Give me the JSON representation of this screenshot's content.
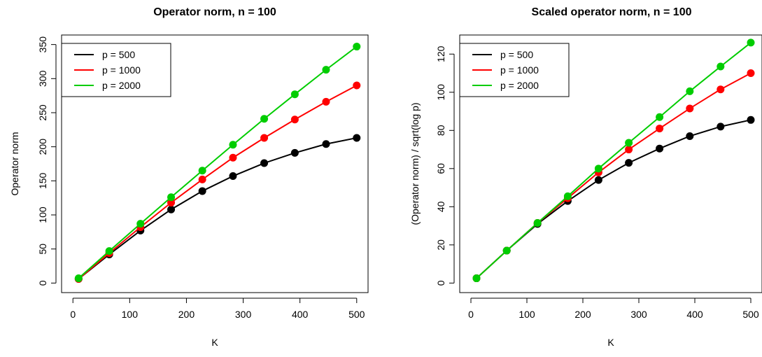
{
  "chart_data": [
    {
      "type": "line",
      "title": "Operator norm, n = 100",
      "xlabel": "K",
      "ylabel": "Operator norm",
      "xlim": [
        0,
        500
      ],
      "ylim": [
        0,
        350
      ],
      "x_ticks": [
        0,
        100,
        200,
        300,
        400,
        500
      ],
      "y_ticks": [
        0,
        50,
        100,
        150,
        200,
        250,
        300,
        350
      ],
      "legend_position": "top-left",
      "grid": false,
      "x": [
        10,
        64,
        119,
        173,
        228,
        282,
        337,
        391,
        446,
        500
      ],
      "series": [
        {
          "name": "p = 500",
          "color": "#000000",
          "values": [
            6,
            42,
            77,
            108,
            135,
            157,
            176,
            191,
            204,
            213
          ]
        },
        {
          "name": "p = 1000",
          "color": "#ff0000",
          "values": [
            6,
            44,
            82,
            118,
            152,
            184,
            213,
            240,
            266,
            290
          ]
        },
        {
          "name": "p = 2000",
          "color": "#00cd00",
          "values": [
            7,
            47,
            87,
            126,
            165,
            203,
            241,
            277,
            313,
            347
          ]
        }
      ]
    },
    {
      "type": "line",
      "title": "Scaled operator norm, n = 100",
      "xlabel": "K",
      "ylabel": "(Operator norm) / sqrt(log p)",
      "xlim": [
        0,
        500
      ],
      "ylim": [
        0,
        125
      ],
      "x_ticks": [
        0,
        100,
        200,
        300,
        400,
        500
      ],
      "y_ticks": [
        0,
        20,
        40,
        60,
        80,
        100,
        120
      ],
      "legend_position": "top-left",
      "grid": false,
      "x": [
        10,
        64,
        119,
        173,
        228,
        282,
        337,
        391,
        446,
        500
      ],
      "series": [
        {
          "name": "p = 500",
          "color": "#000000",
          "values": [
            2.5,
            17,
            31,
            43,
            54,
            63,
            70.5,
            77,
            82,
            85.5
          ]
        },
        {
          "name": "p = 1000",
          "color": "#ff0000",
          "values": [
            2.5,
            17,
            31.5,
            44.5,
            58,
            70,
            81,
            91.5,
            101.5,
            110
          ]
        },
        {
          "name": "p = 2000",
          "color": "#00cd00",
          "values": [
            2.5,
            17,
            31.5,
            45.5,
            60,
            73.5,
            87,
            100.5,
            113.5,
            126
          ]
        }
      ]
    }
  ]
}
